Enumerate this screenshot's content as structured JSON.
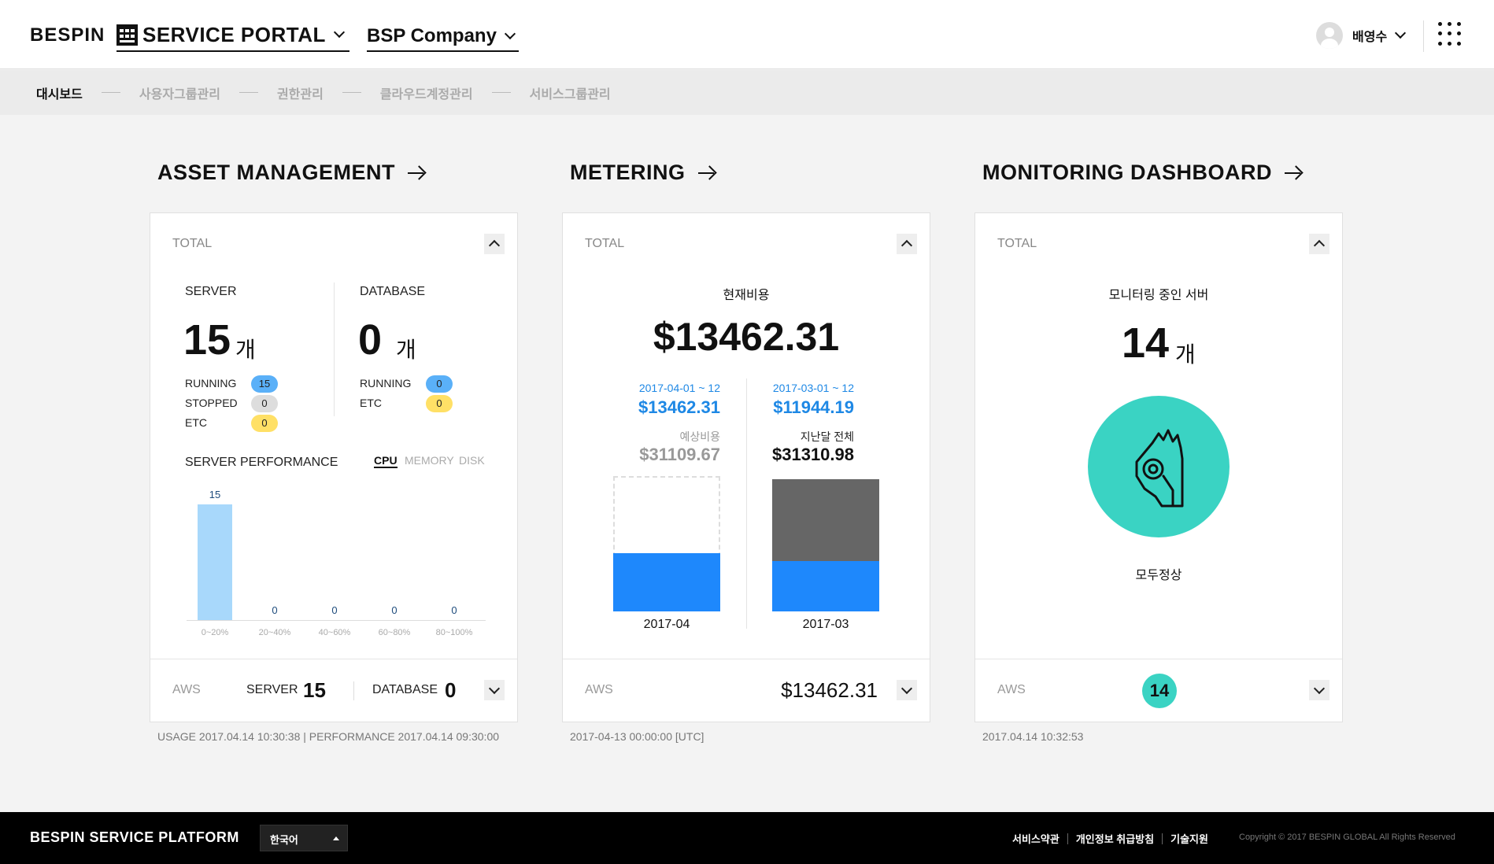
{
  "header": {
    "logo": "BESPIN",
    "portal_label": "SERVICE PORTAL",
    "company_label": "BSP Company",
    "user_name": "배영수"
  },
  "nav": {
    "items": [
      "대시보드",
      "사용자그룹관리",
      "권한관리",
      "클라우드계정관리",
      "서비스그룹관리"
    ],
    "active_index": 0
  },
  "asset": {
    "title": "ASSET MANAGEMENT",
    "total_label": "TOTAL",
    "server_label": "SERVER",
    "server_count": "15",
    "database_label": "DATABASE",
    "database_count": "0",
    "unit": "개",
    "server_status": [
      {
        "label": "RUNNING",
        "value": "15",
        "color": "#5ab0f8"
      },
      {
        "label": "STOPPED",
        "value": "0",
        "color": "#dddddd"
      },
      {
        "label": "ETC",
        "value": "0",
        "color": "#ffe066"
      }
    ],
    "db_status": [
      {
        "label": "RUNNING",
        "value": "0",
        "color": "#5ab0f8"
      },
      {
        "label": "ETC",
        "value": "0",
        "color": "#ffe066"
      }
    ],
    "perf_label": "SERVER PERFORMANCE",
    "perf_tabs": [
      "CPU",
      "MEMORY",
      "DISK"
    ],
    "foot_aws": "AWS",
    "foot_server_label": "SERVER",
    "foot_server": "15",
    "foot_db_label": "DATABASE",
    "foot_db": "0",
    "under": "USAGE 2017.04.14 10:30:38 | PERFORMANCE 2017.04.14 09:30:00"
  },
  "chart_data": {
    "type": "bar",
    "categories": [
      "0~20%",
      "20~40%",
      "40~60%",
      "60~80%",
      "80~100%"
    ],
    "values": [
      15,
      0,
      0,
      0,
      0
    ],
    "ylim": [
      0,
      15
    ]
  },
  "metering": {
    "title": "METERING",
    "total_label": "TOTAL",
    "current_label": "현재비용",
    "current_value": "$13462.31",
    "cur_range": "2017-04-01 ~ 12",
    "cur_amount": "$13462.31",
    "forecast_label": "예상비용",
    "forecast_value": "$31109.67",
    "prev_range": "2017-03-01 ~ 12",
    "prev_amount": "$11944.19",
    "prev_total_label": "지난달 전체",
    "prev_total": "$31310.98",
    "cur_month": "2017-04",
    "prev_month": "2017-03",
    "foot_aws": "AWS",
    "foot_value": "$13462.31",
    "under": "2017-04-13 00:00:00 [UTC]"
  },
  "monitoring": {
    "title": "MONITORING DASHBOARD",
    "total_label": "TOTAL",
    "label": "모니터링 중인 서버",
    "count": "14",
    "unit": "개",
    "status": "모두정상",
    "foot_aws": "AWS",
    "foot_count": "14",
    "under": "2017.04.14 10:32:53"
  },
  "footer": {
    "title": "BESPIN SERVICE PLATFORM",
    "lang": "한국어",
    "links": [
      "서비스약관",
      "개인정보 취급방침",
      "기술지원"
    ],
    "copyright": "Copyright © 2017 BESPIN GLOBAL All Rights Reserved"
  }
}
